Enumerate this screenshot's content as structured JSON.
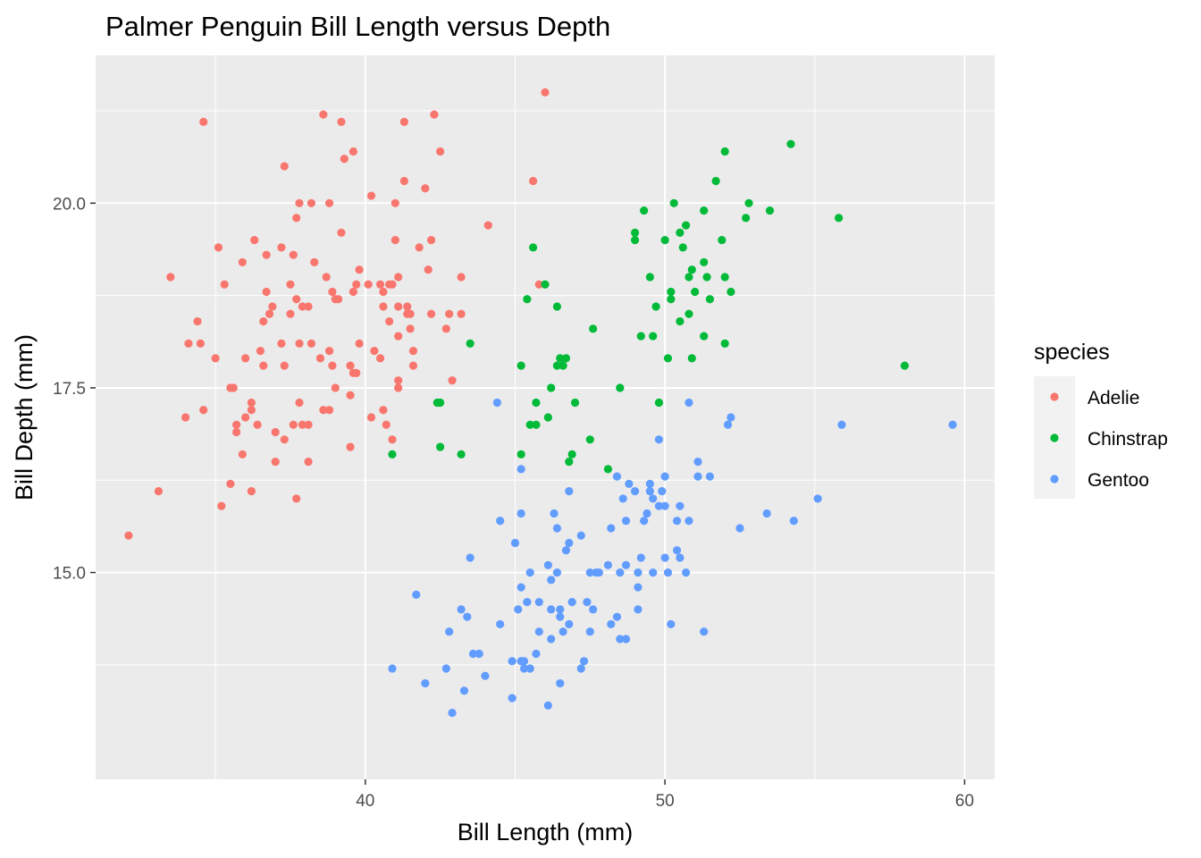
{
  "chart_data": {
    "type": "scatter",
    "title": "Palmer Penguin Bill Length versus Depth",
    "xlabel": "Bill Length (mm)",
    "ylabel": "Bill Depth (mm)",
    "xlim": [
      31.0,
      61.0
    ],
    "ylim": [
      12.2,
      22.0
    ],
    "x_ticks": [
      40,
      50,
      60
    ],
    "x_tick_labels": [
      "40",
      "50",
      "60"
    ],
    "y_ticks": [
      15.0,
      17.5,
      20.0
    ],
    "y_tick_labels": [
      "15.0",
      "17.5",
      "20.0"
    ],
    "grid": true,
    "panel_background": "#ebebeb",
    "legend": {
      "title": "species",
      "position": "right",
      "background": "#f2f2f2",
      "entries": [
        {
          "label": "Adelie",
          "color": "#f8766d"
        },
        {
          "label": "Chinstrap",
          "color": "#00ba38"
        },
        {
          "label": "Gentoo",
          "color": "#619cff"
        }
      ]
    },
    "series": [
      {
        "name": "Adelie",
        "color": "#f8766d",
        "points": [
          [
            32.1,
            15.5
          ],
          [
            33.1,
            16.1
          ],
          [
            33.5,
            19.0
          ],
          [
            34.0,
            17.1
          ],
          [
            34.1,
            18.1
          ],
          [
            34.4,
            18.4
          ],
          [
            34.5,
            18.1
          ],
          [
            34.6,
            21.1
          ],
          [
            34.6,
            17.2
          ],
          [
            35.0,
            17.9
          ],
          [
            35.1,
            19.4
          ],
          [
            35.2,
            15.9
          ],
          [
            35.3,
            18.9
          ],
          [
            35.5,
            16.2
          ],
          [
            35.5,
            17.5
          ],
          [
            35.6,
            17.5
          ],
          [
            35.7,
            17.0
          ],
          [
            35.7,
            16.9
          ],
          [
            35.9,
            19.2
          ],
          [
            35.9,
            16.6
          ],
          [
            36.0,
            17.9
          ],
          [
            36.0,
            17.1
          ],
          [
            36.2,
            17.3
          ],
          [
            36.2,
            16.1
          ],
          [
            36.2,
            17.2
          ],
          [
            36.3,
            19.5
          ],
          [
            36.4,
            17.0
          ],
          [
            36.5,
            18.0
          ],
          [
            36.6,
            17.8
          ],
          [
            36.6,
            18.4
          ],
          [
            36.7,
            19.3
          ],
          [
            36.7,
            18.8
          ],
          [
            36.8,
            18.5
          ],
          [
            36.9,
            18.6
          ],
          [
            37.0,
            16.9
          ],
          [
            37.0,
            16.5
          ],
          [
            37.2,
            19.4
          ],
          [
            37.2,
            18.1
          ],
          [
            37.3,
            17.8
          ],
          [
            37.3,
            16.8
          ],
          [
            37.3,
            20.5
          ],
          [
            37.5,
            18.9
          ],
          [
            37.5,
            18.5
          ],
          [
            37.6,
            19.3
          ],
          [
            37.6,
            17.0
          ],
          [
            37.7,
            19.8
          ],
          [
            37.7,
            16.0
          ],
          [
            37.7,
            18.7
          ],
          [
            37.8,
            20.0
          ],
          [
            37.8,
            18.1
          ],
          [
            37.8,
            17.3
          ],
          [
            37.9,
            18.6
          ],
          [
            37.9,
            17.0
          ],
          [
            38.1,
            18.6
          ],
          [
            38.1,
            17.0
          ],
          [
            38.1,
            16.5
          ],
          [
            38.2,
            20.0
          ],
          [
            38.2,
            18.1
          ],
          [
            38.3,
            19.2
          ],
          [
            38.5,
            17.9
          ],
          [
            38.6,
            21.2
          ],
          [
            38.6,
            17.2
          ],
          [
            38.7,
            19.0
          ],
          [
            38.8,
            20.0
          ],
          [
            38.8,
            18.0
          ],
          [
            38.8,
            17.2
          ],
          [
            38.9,
            18.8
          ],
          [
            38.9,
            17.8
          ],
          [
            39.0,
            17.5
          ],
          [
            39.0,
            18.7
          ],
          [
            39.1,
            18.7
          ],
          [
            39.2,
            19.6
          ],
          [
            39.2,
            21.1
          ],
          [
            39.3,
            20.6
          ],
          [
            39.5,
            17.8
          ],
          [
            39.5,
            16.7
          ],
          [
            39.5,
            17.4
          ],
          [
            39.6,
            18.8
          ],
          [
            39.6,
            17.7
          ],
          [
            39.6,
            20.7
          ],
          [
            39.7,
            18.9
          ],
          [
            39.7,
            17.7
          ],
          [
            39.8,
            19.1
          ],
          [
            39.8,
            18.1
          ],
          [
            40.1,
            18.9
          ],
          [
            40.2,
            20.1
          ],
          [
            40.2,
            17.1
          ],
          [
            40.3,
            18.0
          ],
          [
            40.5,
            17.9
          ],
          [
            40.5,
            18.9
          ],
          [
            40.6,
            18.6
          ],
          [
            40.6,
            17.2
          ],
          [
            40.6,
            18.8
          ],
          [
            40.7,
            17.0
          ],
          [
            40.8,
            18.4
          ],
          [
            40.8,
            18.9
          ],
          [
            40.9,
            16.8
          ],
          [
            40.9,
            18.9
          ],
          [
            41.0,
            20.0
          ],
          [
            41.1,
            19.0
          ],
          [
            41.1,
            18.6
          ],
          [
            41.1,
            17.5
          ],
          [
            41.1,
            18.2
          ],
          [
            41.1,
            17.6
          ],
          [
            41.3,
            20.3
          ],
          [
            41.3,
            21.1
          ],
          [
            41.4,
            18.6
          ],
          [
            41.4,
            18.5
          ],
          [
            41.5,
            18.5
          ],
          [
            41.5,
            18.3
          ],
          [
            41.6,
            18.0
          ],
          [
            41.6,
            17.8
          ],
          [
            41.8,
            19.4
          ],
          [
            42.0,
            20.2
          ],
          [
            42.1,
            19.1
          ],
          [
            42.2,
            18.5
          ],
          [
            42.2,
            19.5
          ],
          [
            42.3,
            21.2
          ],
          [
            42.5,
            20.7
          ],
          [
            42.7,
            18.3
          ],
          [
            42.8,
            18.5
          ],
          [
            42.9,
            17.6
          ],
          [
            43.2,
            18.5
          ],
          [
            43.2,
            19.0
          ],
          [
            44.1,
            19.7
          ],
          [
            45.6,
            20.3
          ],
          [
            45.8,
            18.9
          ],
          [
            46.0,
            21.5
          ],
          [
            41.0,
            19.5
          ]
        ]
      },
      {
        "name": "Chinstrap",
        "color": "#00ba38",
        "points": [
          [
            40.9,
            16.6
          ],
          [
            42.4,
            17.3
          ],
          [
            42.5,
            16.7
          ],
          [
            42.5,
            17.3
          ],
          [
            43.2,
            16.6
          ],
          [
            43.5,
            18.1
          ],
          [
            45.2,
            17.8
          ],
          [
            45.2,
            16.6
          ],
          [
            45.4,
            18.7
          ],
          [
            45.5,
            17.0
          ],
          [
            45.6,
            19.4
          ],
          [
            45.7,
            17.3
          ],
          [
            45.7,
            17.0
          ],
          [
            46.0,
            18.9
          ],
          [
            46.1,
            17.1
          ],
          [
            46.2,
            17.5
          ],
          [
            46.4,
            18.6
          ],
          [
            46.4,
            17.8
          ],
          [
            46.5,
            17.9
          ],
          [
            46.6,
            17.8
          ],
          [
            46.7,
            17.9
          ],
          [
            46.8,
            16.5
          ],
          [
            46.9,
            16.6
          ],
          [
            47.0,
            17.3
          ],
          [
            47.5,
            16.8
          ],
          [
            47.6,
            18.3
          ],
          [
            48.1,
            16.4
          ],
          [
            48.5,
            17.5
          ],
          [
            49.0,
            19.5
          ],
          [
            49.0,
            19.6
          ],
          [
            49.2,
            18.2
          ],
          [
            49.3,
            19.9
          ],
          [
            49.5,
            19.0
          ],
          [
            49.6,
            18.2
          ],
          [
            49.7,
            18.6
          ],
          [
            49.8,
            17.3
          ],
          [
            50.0,
            19.5
          ],
          [
            50.1,
            17.9
          ],
          [
            50.2,
            18.7
          ],
          [
            50.2,
            18.8
          ],
          [
            50.3,
            20.0
          ],
          [
            50.5,
            18.4
          ],
          [
            50.5,
            19.6
          ],
          [
            50.6,
            19.4
          ],
          [
            50.7,
            19.7
          ],
          [
            50.8,
            18.5
          ],
          [
            50.8,
            19.0
          ],
          [
            50.9,
            17.9
          ],
          [
            50.9,
            19.1
          ],
          [
            51.0,
            18.8
          ],
          [
            51.3,
            18.2
          ],
          [
            51.3,
            19.9
          ],
          [
            51.3,
            19.2
          ],
          [
            51.4,
            19.0
          ],
          [
            51.5,
            18.7
          ],
          [
            51.7,
            20.3
          ],
          [
            51.9,
            19.5
          ],
          [
            52.0,
            18.1
          ],
          [
            52.0,
            19.0
          ],
          [
            52.0,
            20.7
          ],
          [
            52.2,
            18.8
          ],
          [
            52.7,
            19.8
          ],
          [
            52.8,
            20.0
          ],
          [
            53.5,
            19.9
          ],
          [
            54.2,
            20.8
          ],
          [
            55.8,
            19.8
          ],
          [
            58.0,
            17.8
          ]
        ]
      },
      {
        "name": "Gentoo",
        "color": "#619cff",
        "points": [
          [
            40.9,
            13.7
          ],
          [
            41.7,
            14.7
          ],
          [
            42.0,
            13.5
          ],
          [
            42.7,
            13.7
          ],
          [
            42.8,
            14.2
          ],
          [
            42.9,
            13.1
          ],
          [
            43.2,
            14.5
          ],
          [
            43.3,
            13.4
          ],
          [
            43.4,
            14.4
          ],
          [
            43.5,
            15.2
          ],
          [
            43.6,
            13.9
          ],
          [
            43.8,
            13.9
          ],
          [
            44.0,
            13.6
          ],
          [
            44.4,
            17.3
          ],
          [
            44.5,
            14.3
          ],
          [
            44.5,
            15.7
          ],
          [
            44.9,
            13.8
          ],
          [
            44.9,
            13.3
          ],
          [
            45.0,
            15.4
          ],
          [
            45.1,
            14.5
          ],
          [
            45.2,
            13.8
          ],
          [
            45.2,
            14.8
          ],
          [
            45.2,
            16.4
          ],
          [
            45.2,
            15.8
          ],
          [
            45.3,
            13.7
          ],
          [
            45.3,
            13.8
          ],
          [
            45.4,
            14.6
          ],
          [
            45.5,
            13.7
          ],
          [
            45.5,
            15.0
          ],
          [
            45.7,
            13.9
          ],
          [
            45.8,
            14.6
          ],
          [
            45.8,
            14.2
          ],
          [
            46.1,
            13.2
          ],
          [
            46.1,
            15.1
          ],
          [
            46.2,
            14.1
          ],
          [
            46.2,
            14.9
          ],
          [
            46.2,
            14.5
          ],
          [
            46.3,
            15.8
          ],
          [
            46.4,
            15.6
          ],
          [
            46.4,
            15.0
          ],
          [
            46.5,
            13.5
          ],
          [
            46.5,
            14.5
          ],
          [
            46.5,
            14.4
          ],
          [
            46.6,
            14.2
          ],
          [
            46.7,
            15.3
          ],
          [
            46.8,
            15.4
          ],
          [
            46.8,
            14.3
          ],
          [
            46.8,
            16.1
          ],
          [
            46.9,
            14.6
          ],
          [
            47.2,
            13.7
          ],
          [
            47.2,
            15.5
          ],
          [
            47.3,
            13.8
          ],
          [
            47.4,
            14.6
          ],
          [
            47.5,
            14.2
          ],
          [
            47.5,
            15.0
          ],
          [
            47.6,
            14.5
          ],
          [
            47.7,
            15.0
          ],
          [
            47.8,
            15.0
          ],
          [
            48.1,
            15.1
          ],
          [
            48.2,
            14.3
          ],
          [
            48.2,
            15.6
          ],
          [
            48.4,
            14.4
          ],
          [
            48.4,
            16.3
          ],
          [
            48.5,
            14.1
          ],
          [
            48.5,
            15.0
          ],
          [
            48.6,
            16.0
          ],
          [
            48.7,
            14.1
          ],
          [
            48.7,
            15.1
          ],
          [
            48.7,
            15.7
          ],
          [
            48.8,
            16.2
          ],
          [
            49.0,
            16.1
          ],
          [
            49.1,
            14.8
          ],
          [
            49.1,
            14.5
          ],
          [
            49.1,
            15.0
          ],
          [
            49.2,
            15.2
          ],
          [
            49.3,
            15.7
          ],
          [
            49.4,
            15.8
          ],
          [
            49.5,
            16.2
          ],
          [
            49.5,
            16.1
          ],
          [
            49.6,
            15.0
          ],
          [
            49.6,
            16.0
          ],
          [
            49.8,
            15.9
          ],
          [
            49.8,
            16.8
          ],
          [
            49.9,
            16.1
          ],
          [
            50.0,
            15.2
          ],
          [
            50.0,
            15.9
          ],
          [
            50.0,
            16.3
          ],
          [
            50.1,
            15.0
          ],
          [
            50.2,
            14.3
          ],
          [
            50.4,
            15.3
          ],
          [
            50.4,
            15.7
          ],
          [
            50.5,
            15.2
          ],
          [
            50.5,
            15.9
          ],
          [
            50.7,
            15.0
          ],
          [
            50.8,
            15.7
          ],
          [
            50.8,
            17.3
          ],
          [
            51.1,
            16.3
          ],
          [
            51.1,
            16.5
          ],
          [
            51.3,
            14.2
          ],
          [
            51.5,
            16.3
          ],
          [
            52.1,
            17.0
          ],
          [
            52.2,
            17.1
          ],
          [
            52.5,
            15.6
          ],
          [
            53.4,
            15.8
          ],
          [
            54.3,
            15.7
          ],
          [
            55.1,
            16.0
          ],
          [
            55.9,
            17.0
          ],
          [
            59.6,
            17.0
          ]
        ]
      }
    ]
  }
}
